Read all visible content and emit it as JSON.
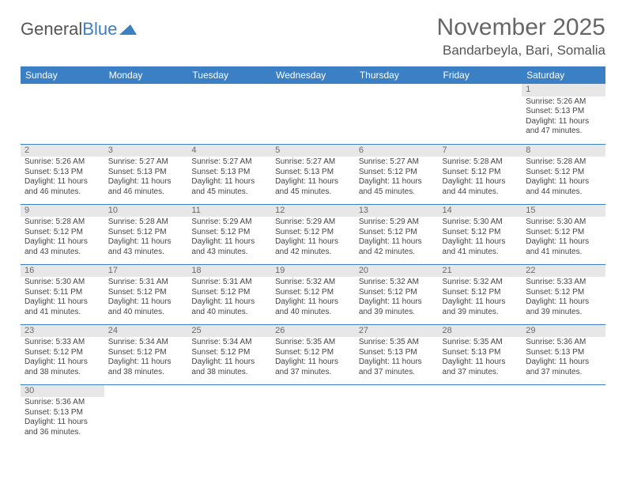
{
  "logo": {
    "text_gray": "General",
    "text_blue": "Blue"
  },
  "header": {
    "month_title": "November 2025",
    "location": "Bandarbeyla, Bari, Somalia"
  },
  "colors": {
    "header_bg": "#3b7fc4",
    "header_text": "#ffffff",
    "daynum_bg": "#e7e7e7",
    "row_divider": "#3b7fc4"
  },
  "weekdays": [
    "Sunday",
    "Monday",
    "Tuesday",
    "Wednesday",
    "Thursday",
    "Friday",
    "Saturday"
  ],
  "weeks": [
    [
      null,
      null,
      null,
      null,
      null,
      null,
      {
        "n": "1",
        "sr": "5:26 AM",
        "ss": "5:13 PM",
        "dl": "11 hours and 47 minutes."
      }
    ],
    [
      {
        "n": "2",
        "sr": "5:26 AM",
        "ss": "5:13 PM",
        "dl": "11 hours and 46 minutes."
      },
      {
        "n": "3",
        "sr": "5:27 AM",
        "ss": "5:13 PM",
        "dl": "11 hours and 46 minutes."
      },
      {
        "n": "4",
        "sr": "5:27 AM",
        "ss": "5:13 PM",
        "dl": "11 hours and 45 minutes."
      },
      {
        "n": "5",
        "sr": "5:27 AM",
        "ss": "5:13 PM",
        "dl": "11 hours and 45 minutes."
      },
      {
        "n": "6",
        "sr": "5:27 AM",
        "ss": "5:12 PM",
        "dl": "11 hours and 45 minutes."
      },
      {
        "n": "7",
        "sr": "5:28 AM",
        "ss": "5:12 PM",
        "dl": "11 hours and 44 minutes."
      },
      {
        "n": "8",
        "sr": "5:28 AM",
        "ss": "5:12 PM",
        "dl": "11 hours and 44 minutes."
      }
    ],
    [
      {
        "n": "9",
        "sr": "5:28 AM",
        "ss": "5:12 PM",
        "dl": "11 hours and 43 minutes."
      },
      {
        "n": "10",
        "sr": "5:28 AM",
        "ss": "5:12 PM",
        "dl": "11 hours and 43 minutes."
      },
      {
        "n": "11",
        "sr": "5:29 AM",
        "ss": "5:12 PM",
        "dl": "11 hours and 43 minutes."
      },
      {
        "n": "12",
        "sr": "5:29 AM",
        "ss": "5:12 PM",
        "dl": "11 hours and 42 minutes."
      },
      {
        "n": "13",
        "sr": "5:29 AM",
        "ss": "5:12 PM",
        "dl": "11 hours and 42 minutes."
      },
      {
        "n": "14",
        "sr": "5:30 AM",
        "ss": "5:12 PM",
        "dl": "11 hours and 41 minutes."
      },
      {
        "n": "15",
        "sr": "5:30 AM",
        "ss": "5:12 PM",
        "dl": "11 hours and 41 minutes."
      }
    ],
    [
      {
        "n": "16",
        "sr": "5:30 AM",
        "ss": "5:11 PM",
        "dl": "11 hours and 41 minutes."
      },
      {
        "n": "17",
        "sr": "5:31 AM",
        "ss": "5:12 PM",
        "dl": "11 hours and 40 minutes."
      },
      {
        "n": "18",
        "sr": "5:31 AM",
        "ss": "5:12 PM",
        "dl": "11 hours and 40 minutes."
      },
      {
        "n": "19",
        "sr": "5:32 AM",
        "ss": "5:12 PM",
        "dl": "11 hours and 40 minutes."
      },
      {
        "n": "20",
        "sr": "5:32 AM",
        "ss": "5:12 PM",
        "dl": "11 hours and 39 minutes."
      },
      {
        "n": "21",
        "sr": "5:32 AM",
        "ss": "5:12 PM",
        "dl": "11 hours and 39 minutes."
      },
      {
        "n": "22",
        "sr": "5:33 AM",
        "ss": "5:12 PM",
        "dl": "11 hours and 39 minutes."
      }
    ],
    [
      {
        "n": "23",
        "sr": "5:33 AM",
        "ss": "5:12 PM",
        "dl": "11 hours and 38 minutes."
      },
      {
        "n": "24",
        "sr": "5:34 AM",
        "ss": "5:12 PM",
        "dl": "11 hours and 38 minutes."
      },
      {
        "n": "25",
        "sr": "5:34 AM",
        "ss": "5:12 PM",
        "dl": "11 hours and 38 minutes."
      },
      {
        "n": "26",
        "sr": "5:35 AM",
        "ss": "5:12 PM",
        "dl": "11 hours and 37 minutes."
      },
      {
        "n": "27",
        "sr": "5:35 AM",
        "ss": "5:13 PM",
        "dl": "11 hours and 37 minutes."
      },
      {
        "n": "28",
        "sr": "5:35 AM",
        "ss": "5:13 PM",
        "dl": "11 hours and 37 minutes."
      },
      {
        "n": "29",
        "sr": "5:36 AM",
        "ss": "5:13 PM",
        "dl": "11 hours and 37 minutes."
      }
    ],
    [
      {
        "n": "30",
        "sr": "5:36 AM",
        "ss": "5:13 PM",
        "dl": "11 hours and 36 minutes."
      },
      null,
      null,
      null,
      null,
      null,
      null
    ]
  ],
  "labels": {
    "sunrise_prefix": "Sunrise: ",
    "sunset_prefix": "Sunset: ",
    "daylight_prefix": "Daylight: "
  }
}
